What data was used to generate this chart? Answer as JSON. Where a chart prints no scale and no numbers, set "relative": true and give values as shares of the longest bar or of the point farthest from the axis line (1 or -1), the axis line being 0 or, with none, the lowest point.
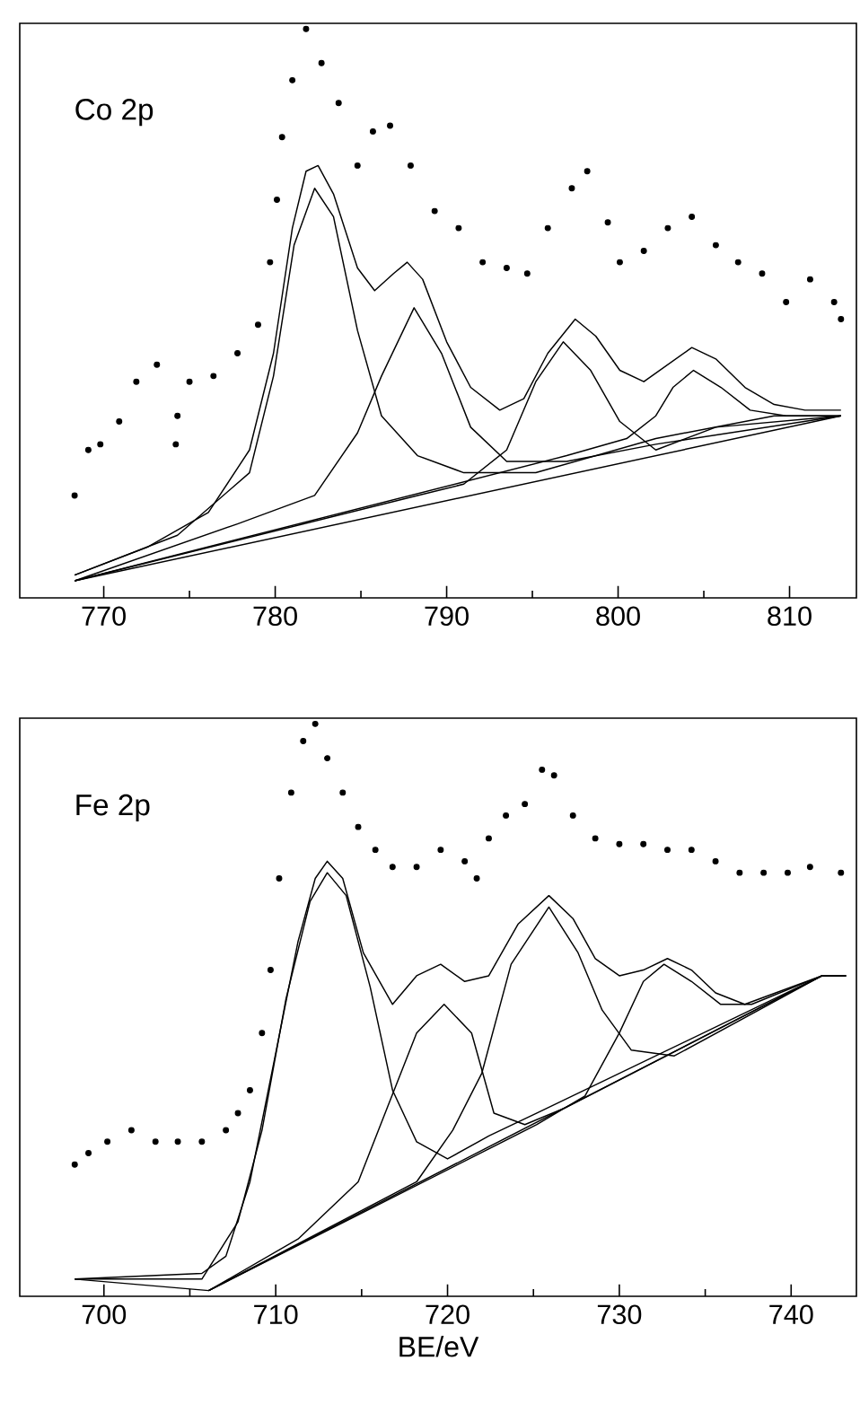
{
  "chart_data": [
    {
      "type": "line",
      "title": "Co 2p",
      "relative": true,
      "xlim": [
        765.1,
        813.9
      ],
      "xticks": [
        770,
        {
          "value": 775,
          "label": null
        },
        780,
        {
          "value": 785,
          "label": null
        },
        790,
        {
          "value": 795,
          "label": null
        },
        800,
        {
          "value": 805,
          "label": null
        },
        810
      ],
      "series": [
        {
          "type": "scatter",
          "color": "#000000",
          "marker": "circle",
          "x": [
            768.3,
            769.1,
            769.8,
            770.9,
            771.9,
            773.1,
            774.2,
            774.3,
            775.0,
            776.4,
            777.8,
            779.0,
            779.7,
            780.1,
            780.4,
            781.0,
            781.8,
            782.7,
            783.7,
            784.8,
            785.7,
            786.7,
            787.9,
            789.3,
            790.7,
            792.1,
            793.5,
            794.7,
            795.9,
            797.3,
            798.2,
            799.4,
            800.1,
            801.5,
            802.9,
            804.3,
            805.7,
            807.0,
            808.4,
            809.8,
            811.2,
            812.6,
            813.0
          ],
          "values": [
            0.18,
            0.26,
            0.27,
            0.31,
            0.38,
            0.41,
            0.27,
            0.32,
            0.38,
            0.39,
            0.43,
            0.48,
            0.59,
            0.7,
            0.81,
            0.91,
            1.0,
            0.94,
            0.87,
            0.76,
            0.82,
            0.83,
            0.76,
            0.68,
            0.65,
            0.59,
            0.58,
            0.57,
            0.65,
            0.72,
            0.75,
            0.66,
            0.59,
            0.61,
            0.65,
            0.67,
            0.62,
            0.59,
            0.57,
            0.52,
            0.56,
            0.52,
            0.49
          ]
        },
        {
          "type": "line",
          "color": "#000000",
          "x": [
            768.3,
            772.6,
            776.1,
            778.5,
            779.9,
            781.0,
            781.8,
            782.5,
            783.4,
            784.8,
            785.8,
            786.9,
            787.7,
            788.6,
            790.0,
            791.4,
            793.1,
            794.5,
            795.9,
            797.5,
            798.7,
            800.1,
            801.5,
            802.9,
            804.3,
            805.7,
            807.4,
            809.1,
            810.9,
            813.0
          ],
          "values": [
            0.04,
            0.09,
            0.15,
            0.26,
            0.43,
            0.65,
            0.75,
            0.76,
            0.71,
            0.58,
            0.54,
            0.57,
            0.59,
            0.56,
            0.45,
            0.37,
            0.33,
            0.35,
            0.43,
            0.49,
            0.46,
            0.4,
            0.38,
            0.41,
            0.44,
            0.42,
            0.37,
            0.34,
            0.33,
            0.33
          ]
        },
        {
          "type": "line",
          "color": "#000000",
          "x": [
            768.3,
            774.3,
            778.5,
            779.9,
            781.1,
            782.3,
            783.4,
            784.8,
            786.2,
            788.3,
            791.0,
            795.2,
            802.2,
            809.1,
            813.0
          ],
          "values": [
            0.04,
            0.11,
            0.22,
            0.39,
            0.62,
            0.72,
            0.67,
            0.47,
            0.32,
            0.25,
            0.22,
            0.22,
            0.28,
            0.32,
            0.32
          ]
        },
        {
          "type": "line",
          "color": "#000000",
          "x": [
            768.3,
            777.8,
            782.3,
            784.8,
            786.2,
            788.1,
            789.7,
            791.4,
            793.5,
            797.0,
            802.2,
            813.0
          ],
          "values": [
            0.03,
            0.13,
            0.18,
            0.29,
            0.39,
            0.51,
            0.43,
            0.3,
            0.24,
            0.24,
            0.27,
            0.32
          ]
        },
        {
          "type": "line",
          "color": "#000000",
          "x": [
            768.3,
            788.3,
            791.0,
            793.5,
            795.2,
            796.8,
            798.4,
            800.1,
            802.2,
            805.7,
            813.0
          ],
          "values": [
            0.03,
            0.18,
            0.2,
            0.26,
            0.38,
            0.45,
            0.4,
            0.31,
            0.26,
            0.3,
            0.32
          ]
        },
        {
          "type": "line",
          "color": "#000000",
          "x": [
            768.3,
            797.0,
            800.5,
            802.2,
            803.2,
            804.4,
            806.0,
            807.7,
            809.8,
            813.0
          ],
          "values": [
            0.03,
            0.25,
            0.28,
            0.32,
            0.37,
            0.4,
            0.37,
            0.33,
            0.32,
            0.32
          ]
        },
        {
          "type": "line",
          "color": "#000000",
          "x": [
            768.3,
            813.0
          ],
          "values": [
            0.03,
            0.32
          ]
        }
      ]
    },
    {
      "type": "line",
      "title": "Fe 2p",
      "xlabel": "BE/eV",
      "relative": true,
      "xlim": [
        695.1,
        743.8
      ],
      "xticks": [
        700,
        {
          "value": 705,
          "label": null
        },
        710,
        {
          "value": 715,
          "label": null
        },
        720,
        {
          "value": 725,
          "label": null
        },
        730,
        {
          "value": 735,
          "label": null
        },
        740
      ],
      "series": [
        {
          "type": "scatter",
          "color": "#000000",
          "marker": "circle",
          "x": [
            698.3,
            699.1,
            700.2,
            701.6,
            703.0,
            704.3,
            705.7,
            707.1,
            707.8,
            708.5,
            709.2,
            709.7,
            710.2,
            710.9,
            711.6,
            712.3,
            713.0,
            713.9,
            714.8,
            715.8,
            716.8,
            718.2,
            719.6,
            721.0,
            721.7,
            722.4,
            723.4,
            724.5,
            725.5,
            726.2,
            727.3,
            728.6,
            730.0,
            731.4,
            732.8,
            734.2,
            735.6,
            737.0,
            738.4,
            739.8,
            741.1,
            742.9
          ],
          "values": [
            0.23,
            0.25,
            0.27,
            0.29,
            0.27,
            0.27,
            0.27,
            0.29,
            0.32,
            0.36,
            0.46,
            0.57,
            0.73,
            0.88,
            0.97,
            1.0,
            0.94,
            0.88,
            0.82,
            0.78,
            0.75,
            0.75,
            0.78,
            0.76,
            0.73,
            0.8,
            0.84,
            0.86,
            0.92,
            0.91,
            0.84,
            0.8,
            0.79,
            0.79,
            0.78,
            0.78,
            0.76,
            0.74,
            0.74,
            0.74,
            0.75,
            0.74
          ]
        },
        {
          "type": "line",
          "color": "#000000",
          "x": [
            698.3,
            705.7,
            707.1,
            708.5,
            709.9,
            711.3,
            712.3,
            713.0,
            713.9,
            715.1,
            716.8,
            718.2,
            719.6,
            721.0,
            722.4,
            724.1,
            725.9,
            727.3,
            728.6,
            730.0,
            731.4,
            732.8,
            734.2,
            735.6,
            737.3,
            739.1,
            741.8,
            743.2
          ],
          "values": [
            0.03,
            0.04,
            0.07,
            0.2,
            0.41,
            0.62,
            0.73,
            0.76,
            0.73,
            0.6,
            0.51,
            0.56,
            0.58,
            0.55,
            0.56,
            0.65,
            0.7,
            0.66,
            0.59,
            0.56,
            0.57,
            0.59,
            0.57,
            0.53,
            0.51,
            0.53,
            0.56,
            0.56
          ]
        },
        {
          "type": "line",
          "color": "#000000",
          "x": [
            698.3,
            705.7,
            707.8,
            709.2,
            710.6,
            712.0,
            713.0,
            714.1,
            715.5,
            716.8,
            718.2,
            720.0,
            722.4,
            725.2,
            741.8,
            743.2
          ],
          "values": [
            0.03,
            0.03,
            0.13,
            0.29,
            0.52,
            0.69,
            0.74,
            0.7,
            0.54,
            0.36,
            0.27,
            0.24,
            0.28,
            0.32,
            0.56,
            0.56
          ]
        },
        {
          "type": "line",
          "color": "#000000",
          "x": [
            706.1,
            711.3,
            714.8,
            716.5,
            718.2,
            719.8,
            721.4,
            722.7,
            724.5,
            726.9,
            741.8
          ],
          "values": [
            0.01,
            0.1,
            0.2,
            0.33,
            0.46,
            0.51,
            0.46,
            0.32,
            0.3,
            0.33,
            0.56
          ]
        },
        {
          "type": "line",
          "color": "#000000",
          "x": [
            706.1,
            718.2,
            720.3,
            722.0,
            723.7,
            725.9,
            727.6,
            729.0,
            730.7,
            733.2,
            741.8
          ],
          "values": [
            0.01,
            0.2,
            0.29,
            0.39,
            0.58,
            0.68,
            0.6,
            0.5,
            0.43,
            0.42,
            0.56
          ]
        },
        {
          "type": "line",
          "color": "#000000",
          "x": [
            706.1,
            725.2,
            728.0,
            730.0,
            731.4,
            732.6,
            734.2,
            735.9,
            737.7,
            741.8
          ],
          "values": [
            0.01,
            0.3,
            0.35,
            0.46,
            0.55,
            0.58,
            0.55,
            0.51,
            0.51,
            0.56
          ]
        },
        {
          "type": "line",
          "color": "#000000",
          "x": [
            698.3,
            706.1,
            741.8,
            743.2
          ],
          "values": [
            0.03,
            0.01,
            0.56,
            0.56
          ]
        }
      ]
    }
  ]
}
